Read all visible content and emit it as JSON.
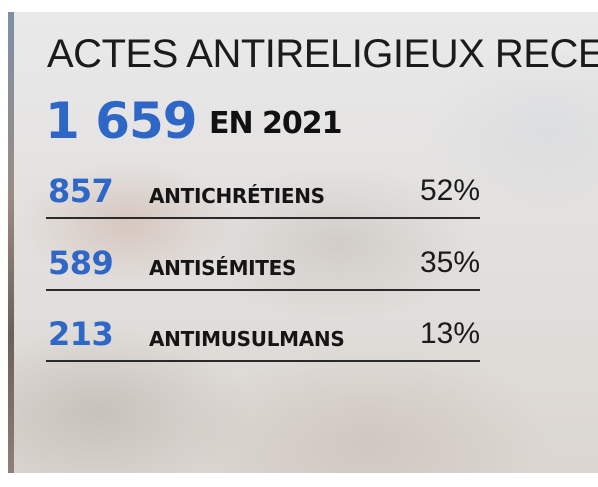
{
  "title": "ACTES ANTIRELIGIEUX RECENSÉS",
  "total": {
    "number": "1 659",
    "label": "EN 2021"
  },
  "rows": [
    {
      "number": "857",
      "label": "ANTICHRÉTIENS",
      "percent": "52%"
    },
    {
      "number": "589",
      "label": "ANTISÉMITES",
      "percent": "35%"
    },
    {
      "number": "213",
      "label": "ANTIMUSULMANS",
      "percent": "13%"
    }
  ],
  "colors": {
    "accent_blue": "#2f67c6",
    "text_dark": "#151515"
  }
}
